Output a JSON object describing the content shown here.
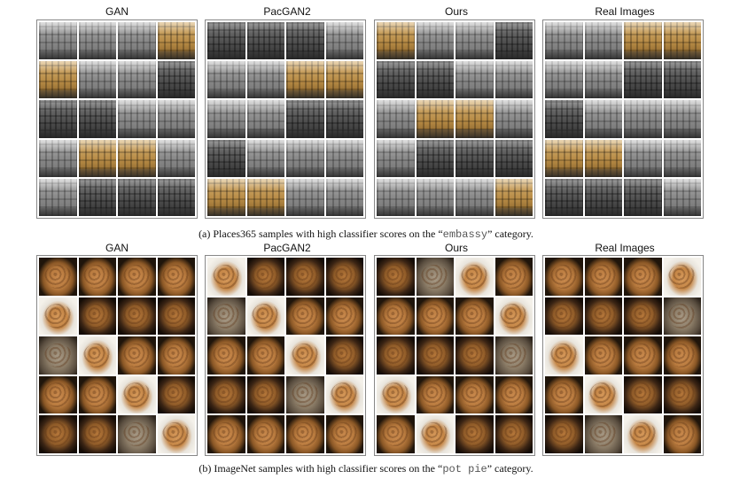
{
  "figure_a": {
    "panels": [
      {
        "title": "GAN"
      },
      {
        "title": "PacGAN2"
      },
      {
        "title": "Ours"
      },
      {
        "title": "Real Images"
      }
    ],
    "caption_prefix": "(a) Places365 samples with high classifier scores on the “",
    "caption_category": "embassy",
    "caption_suffix": "” category."
  },
  "figure_b": {
    "panels": [
      {
        "title": "GAN"
      },
      {
        "title": "PacGAN2"
      },
      {
        "title": "Ours"
      },
      {
        "title": "Real Images"
      }
    ],
    "caption_prefix": "(b) ImageNet samples with high classifier scores on the “",
    "caption_category": "pot pie",
    "caption_suffix": "” category."
  }
}
